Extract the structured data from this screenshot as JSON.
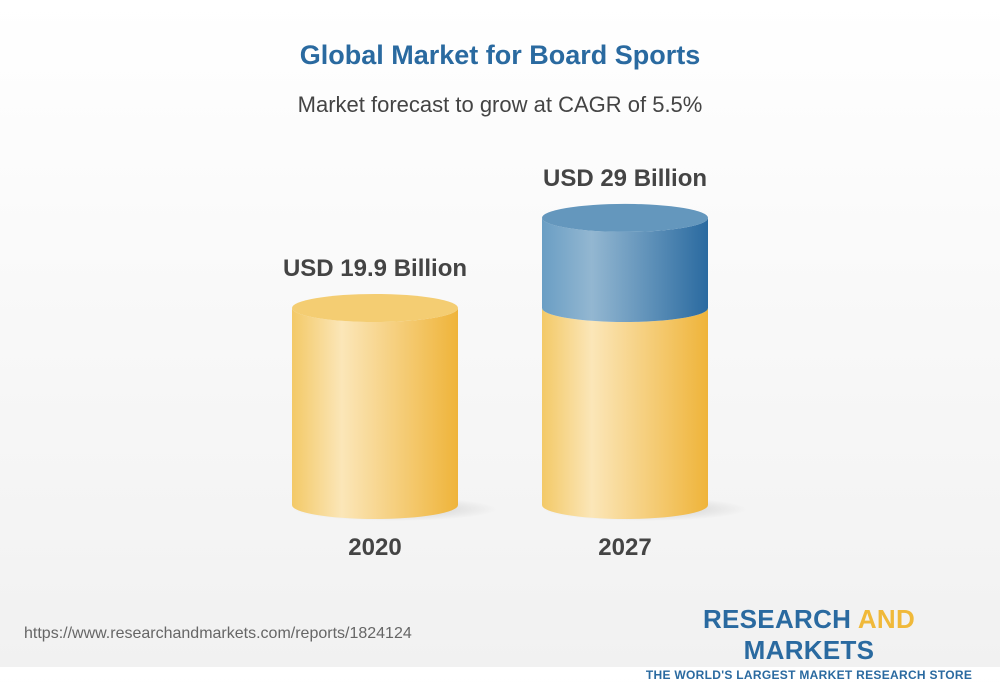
{
  "chart_data": {
    "type": "bar",
    "style": "3d-cylinder",
    "title": "Global Market for Board Sports",
    "subtitle": "Market forecast to grow at CAGR of 5.5%",
    "categories": [
      "2020",
      "2027"
    ],
    "values": [
      19.9,
      29
    ],
    "unit": "USD Billion",
    "data_labels": [
      "USD 19.9 Billion",
      "USD 29 Billion"
    ],
    "colors": {
      "base": "#f0b93a",
      "growth": "#2a6aa0"
    },
    "grid": false
  },
  "footer": {
    "url": "https://www.researchandmarkets.com/reports/1824124",
    "logo_part1": "RESEARCH ",
    "logo_part2": "AND",
    "logo_part3": " MARKETS",
    "logo_tagline": "THE WORLD'S LARGEST MARKET RESEARCH STORE"
  }
}
